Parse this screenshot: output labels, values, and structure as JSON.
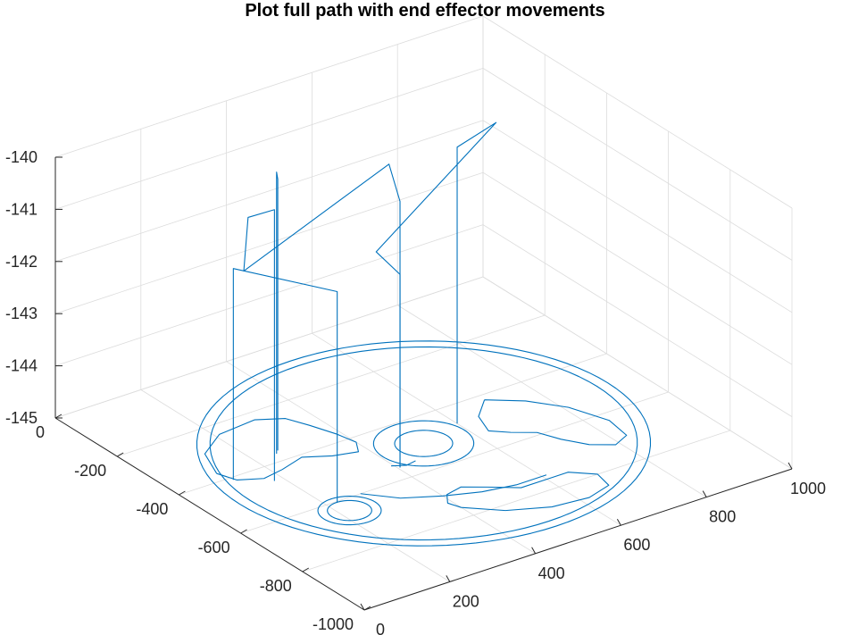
{
  "chart_data": {
    "type": "line3d",
    "title": "Plot full path with end effector movements",
    "xlabel": "",
    "ylabel": "",
    "zlabel": "",
    "xlim": [
      0,
      1000
    ],
    "ylim": [
      -1000,
      0
    ],
    "zlim": [
      -145,
      -140
    ],
    "xticks": [
      0,
      200,
      400,
      600,
      800,
      1000
    ],
    "xtick_labels": [
      "0",
      "200",
      "400",
      "600",
      "800",
      "1000"
    ],
    "yticks": [
      -1000,
      -800,
      -600,
      -400,
      -200,
      0
    ],
    "ytick_labels": [
      "-1000",
      "-800",
      "-600",
      "-400",
      "-200",
      "0"
    ],
    "zticks": [
      -145,
      -144,
      -143,
      -142,
      -141,
      -140
    ],
    "ztick_labels": [
      "-145",
      "-144",
      "-143",
      "-142",
      "-141",
      "-140"
    ],
    "grid": true,
    "line_color": "#0072BD",
    "path_shapes": [
      {
        "kind": "circle",
        "name": "outer-ring-outer",
        "cx": 500,
        "cy": -500,
        "r": 430,
        "z": -145
      },
      {
        "kind": "circle",
        "name": "outer-ring-inner",
        "cx": 500,
        "cy": -500,
        "r": 405,
        "z": -145
      },
      {
        "kind": "circle",
        "name": "center-ring-outer",
        "cx": 500,
        "cy": -500,
        "r": 95,
        "z": -145
      },
      {
        "kind": "circle",
        "name": "center-ring-inner",
        "cx": 500,
        "cy": -500,
        "r": 55,
        "z": -145
      },
      {
        "kind": "circle",
        "name": "small-ring-outer",
        "cx": 222,
        "cy": -645,
        "r": 60,
        "z": -145
      },
      {
        "kind": "circle",
        "name": "small-ring-inner",
        "cx": 222,
        "cy": -645,
        "r": 42,
        "z": -145
      }
    ],
    "path_polylines": [
      {
        "name": "arc-slot-left",
        "z": -145,
        "points": [
          [
            110,
            -370
          ],
          [
            140,
            -290
          ],
          [
            210,
            -240
          ],
          [
            300,
            -230
          ],
          [
            350,
            -260
          ],
          [
            370,
            -310
          ],
          [
            390,
            -370
          ],
          [
            400,
            -420
          ],
          [
            380,
            -455
          ],
          [
            330,
            -440
          ],
          [
            280,
            -410
          ],
          [
            220,
            -430
          ],
          [
            170,
            -440
          ],
          [
            125,
            -415
          ],
          [
            110,
            -370
          ]
        ]
      },
      {
        "name": "arc-slot-right",
        "z": -145,
        "points": [
          [
            700,
            -420
          ],
          [
            760,
            -470
          ],
          [
            810,
            -540
          ],
          [
            840,
            -630
          ],
          [
            830,
            -700
          ],
          [
            790,
            -720
          ],
          [
            750,
            -690
          ],
          [
            720,
            -640
          ],
          [
            700,
            -590
          ],
          [
            660,
            -560
          ],
          [
            630,
            -530
          ],
          [
            650,
            -470
          ],
          [
            700,
            -420
          ]
        ]
      },
      {
        "name": "arc-slot-bottom",
        "z": -145,
        "points": [
          [
            400,
            -760
          ],
          [
            460,
            -820
          ],
          [
            540,
            -860
          ],
          [
            620,
            -870
          ],
          [
            680,
            -850
          ],
          [
            690,
            -800
          ],
          [
            650,
            -760
          ],
          [
            600,
            -760
          ],
          [
            540,
            -760
          ],
          [
            490,
            -720
          ],
          [
            450,
            -690
          ],
          [
            410,
            -700
          ],
          [
            390,
            -730
          ],
          [
            400,
            -760
          ]
        ]
      },
      {
        "name": "return-arc",
        "z": -145,
        "points": [
          [
            280,
            -600
          ],
          [
            330,
            -660
          ],
          [
            400,
            -700
          ],
          [
            470,
            -730
          ],
          [
            540,
            -745
          ],
          [
            610,
            -745
          ]
        ]
      },
      {
        "name": "lead-in",
        "z": -145,
        "points": [
          [
            395,
            -540
          ],
          [
            420,
            -555
          ],
          [
            445,
            -550
          ]
        ]
      },
      {
        "name": "transit-1",
        "points": [
          [
            222,
            -605,
            -145
          ],
          [
            222,
            -605,
            -140.95
          ],
          [
            120,
            -410,
            -140.95
          ],
          [
            120,
            -410,
            -145
          ]
        ]
      },
      {
        "name": "transit-2",
        "points": [
          [
            180,
            -460,
            -145
          ],
          [
            180,
            -460,
            -139.8
          ],
          [
            140,
            -430,
            -139.95
          ],
          [
            130,
            -430,
            -140.95
          ],
          [
            390,
            -540,
            -139.2
          ],
          [
            405,
            -555,
            -139.9
          ],
          [
            405,
            -555,
            -145
          ]
        ]
      },
      {
        "name": "transit-3",
        "points": [
          [
            600,
            -470,
            -145
          ],
          [
            600,
            -470,
            -139.7
          ],
          [
            720,
            -430,
            -139.7
          ],
          [
            360,
            -540,
            -140.8
          ],
          [
            405,
            -555,
            -141.3
          ],
          [
            405,
            -555,
            -145
          ]
        ]
      },
      {
        "name": "transit-4",
        "points": [
          [
            260,
            -360,
            -145
          ],
          [
            260,
            -360,
            -139.8
          ],
          [
            250,
            -370,
            -139.6
          ],
          [
            250,
            -370,
            -145
          ]
        ]
      }
    ]
  }
}
